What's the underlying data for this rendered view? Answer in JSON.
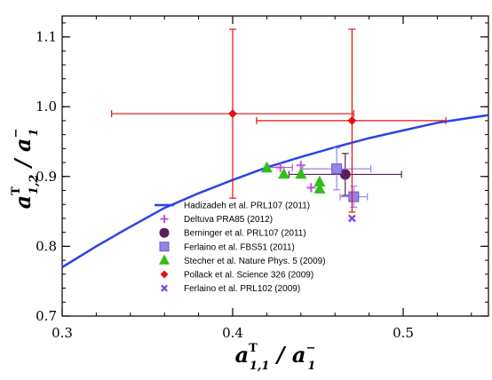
{
  "chart_data": {
    "type": "scatter",
    "xlabel": "a^T_{1,1} / a^-_1",
    "ylabel": "a^T_{1,2} / a^-_1",
    "xlim": [
      0.3,
      0.55
    ],
    "ylim": [
      0.7,
      1.13
    ],
    "x_ticks": [
      0.3,
      0.4,
      0.5
    ],
    "y_ticks": [
      0.7,
      0.8,
      0.9,
      1.0,
      1.1
    ],
    "x_tick_labels": [
      "0.3",
      "0.4",
      "0.5"
    ],
    "y_tick_labels": [
      "0.7",
      "0.8",
      "0.9",
      "1.0",
      "1.1"
    ],
    "grid": false,
    "legend_position": "bottom-center",
    "series": [
      {
        "name": "Hadizadeh et al. PRL107 (2011)",
        "kind": "line",
        "color": "#2a45e6",
        "x": [
          0.3,
          0.32,
          0.34,
          0.36,
          0.38,
          0.4,
          0.42,
          0.44,
          0.46,
          0.48,
          0.5,
          0.52,
          0.55
        ],
        "y": [
          0.77,
          0.8,
          0.828,
          0.855,
          0.876,
          0.895,
          0.913,
          0.928,
          0.942,
          0.955,
          0.966,
          0.977,
          0.988
        ]
      },
      {
        "name": "Deltuva PRA85 (2012)",
        "kind": "points",
        "marker": "plus",
        "color": "#c050e0",
        "points": [
          {
            "x": 0.428,
            "y": 0.913,
            "xerr": 0.007
          },
          {
            "x": 0.44,
            "y": 0.916
          },
          {
            "x": 0.446,
            "y": 0.884
          },
          {
            "x": 0.471,
            "y": 0.87
          }
        ]
      },
      {
        "name": "Berninger et al. PRL107 (2011)",
        "kind": "points",
        "marker": "circle",
        "color": "#5a1f5e",
        "points": [
          {
            "x": 0.466,
            "y": 0.903,
            "xerr": 0.033,
            "yerr": 0.03
          }
        ]
      },
      {
        "name": "Ferlaino et al. FBS51 (2011)",
        "kind": "points",
        "marker": "square",
        "color": "#9a82e8",
        "points": [
          {
            "x": 0.461,
            "y": 0.911,
            "xerr": 0.02,
            "yerr": 0.03
          },
          {
            "x": 0.471,
            "y": 0.871,
            "xerr": 0.008,
            "yerr": 0.015
          }
        ]
      },
      {
        "name": "Stecher et al. Nature Phys. 5 (2009)",
        "kind": "points",
        "marker": "triangle",
        "color": "#2fbf1a",
        "points": [
          {
            "x": 0.42,
            "y": 0.912
          },
          {
            "x": 0.43,
            "y": 0.903
          },
          {
            "x": 0.44,
            "y": 0.903
          },
          {
            "x": 0.451,
            "y": 0.892
          },
          {
            "x": 0.451,
            "y": 0.882
          }
        ]
      },
      {
        "name": "Pollack et al. Science 326 (2009)",
        "kind": "points",
        "marker": "diamond",
        "color": "#e51010",
        "points": [
          {
            "x": 0.4,
            "y": 0.99,
            "xerr": 0.071,
            "yerr": 0.121
          },
          {
            "x": 0.47,
            "y": 0.98,
            "xerr_minus": 0.056,
            "xerr_plus": 0.055,
            "yerr": 0.131
          }
        ]
      },
      {
        "name": "Ferlaino et al. PRL102 (2009)",
        "kind": "points",
        "marker": "x",
        "color": "#7b3fe4",
        "points": [
          {
            "x": 0.47,
            "y": 0.84
          }
        ]
      }
    ]
  }
}
